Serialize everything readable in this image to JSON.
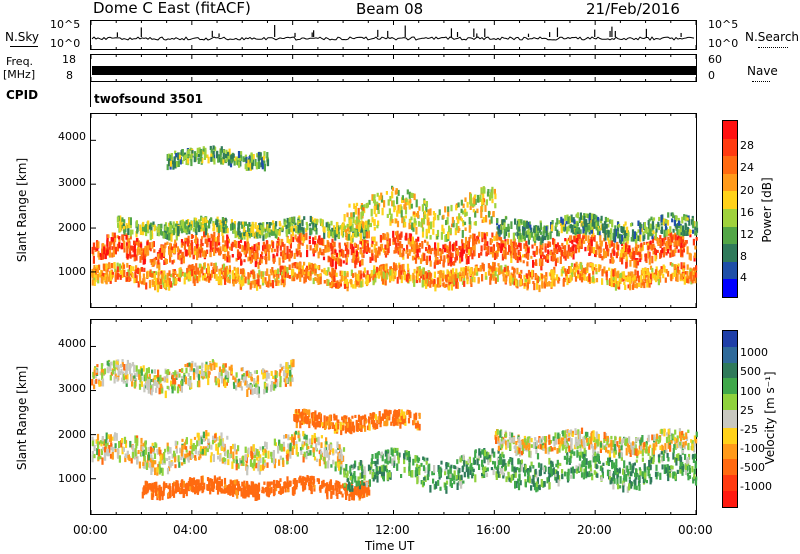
{
  "header": {
    "station": "Dome C East (fitACF)",
    "beam": "Beam 08",
    "date": "21/Feb/2016"
  },
  "nsky": {
    "label": "N.Sky",
    "ticks": [
      "10^5",
      "10^0"
    ],
    "right_label": "N.Search",
    "right_ticks": [
      "10^5",
      "10^0"
    ]
  },
  "freq": {
    "label_line1": "Freq.",
    "label_line2": "[MHz]",
    "ticks": [
      "18",
      "8"
    ],
    "right_label": "Nave",
    "right_ticks": [
      "60",
      "0"
    ]
  },
  "cpid": {
    "label": "CPID",
    "value": "twofsound 3501"
  },
  "time_axis": {
    "label": "Time UT",
    "ticks": [
      "00:00",
      "04:00",
      "08:00",
      "12:00",
      "16:00",
      "20:00",
      "00:00"
    ]
  },
  "power": {
    "ylabel": "Slant Range [km]",
    "yticks": [
      "4000",
      "3000",
      "2000",
      "1000"
    ],
    "colorbar_label": "Power [dB]",
    "colorbar_ticks": [
      "28",
      "24",
      "20",
      "16",
      "12",
      "8",
      "4"
    ],
    "colors": [
      "#0000ff",
      "#1f4fa8",
      "#2f7a5a",
      "#52a646",
      "#9fd23c",
      "#ffd21a",
      "#ff9a1a",
      "#ff6a10",
      "#ff3a10",
      "#ff1010"
    ]
  },
  "velocity": {
    "ylabel": "Slant Range [km]",
    "yticks": [
      "4000",
      "3000",
      "2000",
      "1000"
    ],
    "colorbar_label": "Velocity [m s⁻¹]",
    "colorbar_ticks": [
      "1000",
      "500",
      "100",
      "25",
      "-25",
      "-100",
      "-500",
      "-1000"
    ],
    "colors": [
      "#1f3fa8",
      "#2f6a9a",
      "#2f7a5a",
      "#3fa84a",
      "#8fd23c",
      "#c8c8c0",
      "#c8c8c0",
      "#ffd21a",
      "#ff9a1a",
      "#ff6a10",
      "#ff1a10"
    ]
  },
  "chart_data": {
    "type": "heatmap",
    "x_unit": "hours UT",
    "xlim": [
      0,
      24
    ],
    "ylim": [
      200,
      4600
    ],
    "power_bands": [
      {
        "x": [
          0,
          24
        ],
        "y_center": 1500,
        "y_half": 250,
        "level": 26
      },
      {
        "x": [
          0,
          24
        ],
        "y_center": 900,
        "y_half": 180,
        "level": 22
      },
      {
        "x": [
          1,
          11
        ],
        "y_center": 2000,
        "y_half": 150,
        "level": 14
      },
      {
        "x": [
          3,
          7
        ],
        "y_center": 3600,
        "y_half": 150,
        "level": 12
      },
      {
        "x": [
          10,
          16
        ],
        "y_center": 2300,
        "y_half": 400,
        "level": 18
      },
      {
        "x": [
          16,
          24
        ],
        "y_center": 2000,
        "y_half": 200,
        "level": 12
      }
    ],
    "velocity_bands": [
      {
        "x": [
          0,
          10
        ],
        "y_center": 1600,
        "y_half": 300,
        "v": 0
      },
      {
        "x": [
          2,
          11
        ],
        "y_center": 800,
        "y_half": 150,
        "v": -200
      },
      {
        "x": [
          10,
          24
        ],
        "y_center": 1200,
        "y_half": 300,
        "v": 150
      },
      {
        "x": [
          8,
          13
        ],
        "y_center": 2300,
        "y_half": 150,
        "v": -150
      },
      {
        "x": [
          0,
          8
        ],
        "y_center": 3300,
        "y_half": 250,
        "v": 0
      },
      {
        "x": [
          16,
          24
        ],
        "y_center": 1800,
        "y_half": 200,
        "v": 0
      }
    ]
  }
}
